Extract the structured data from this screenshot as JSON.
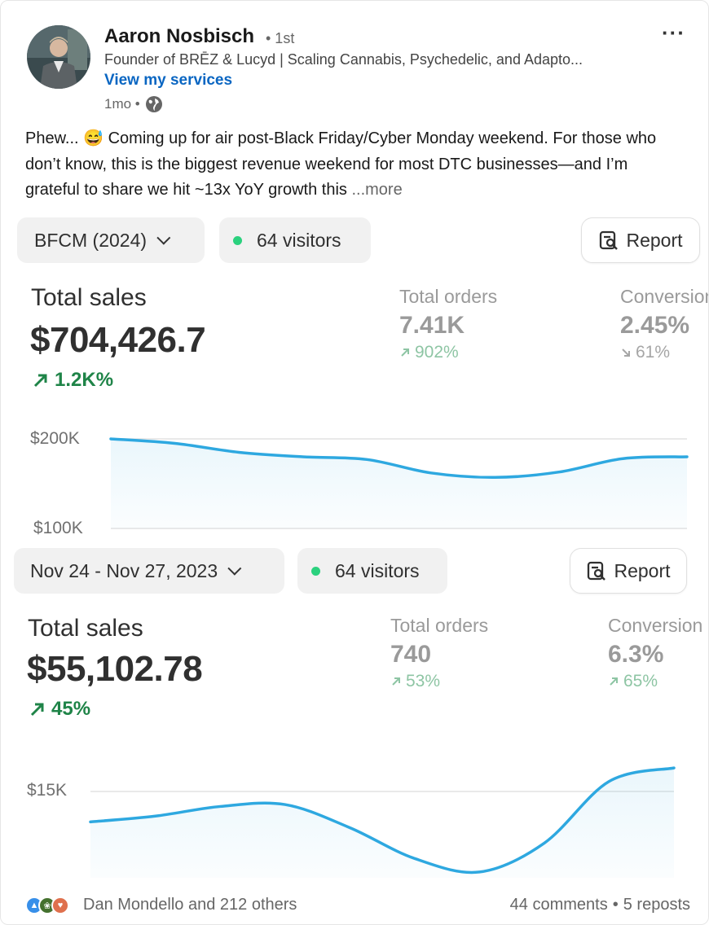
{
  "post": {
    "author": {
      "name": "Aaron Nosbisch",
      "degree": "• 1st",
      "headline": "Founder of BRĒZ & Lucyd | Scaling Cannabis, Psychedelic, and Adapto...",
      "services_link": "View my services",
      "time": "1mo •",
      "visibility_icon": "globe-icon"
    },
    "more_menu": "···",
    "text": "Phew... 😅 Coming up for air post-Black Friday/Cyber Monday weekend. For those who don’t know, this is the biggest revenue weekend for most DTC businesses—and I’m grateful to share we hit ~13x YoY growth this",
    "see_more": "...more"
  },
  "dashboards": [
    {
      "date_range": "BFCM (2024)",
      "visitors": "64 visitors",
      "report_label": "Report",
      "total_sales_label": "Total sales",
      "total_sales_value": "$704,426.7",
      "total_sales_change": "1.2K%",
      "metrics": [
        {
          "label": "Total orders",
          "value": "7.41K",
          "change": "902%",
          "direction": "up"
        },
        {
          "label": "Conversion",
          "value": "2.45%",
          "change": "61%",
          "direction": "down"
        }
      ],
      "y_ticks": [
        "$200K",
        "$100K"
      ]
    },
    {
      "date_range": "Nov 24 - Nov 27, 2023",
      "visitors": "64 visitors",
      "report_label": "Report",
      "total_sales_label": "Total sales",
      "total_sales_value": "$55,102.78",
      "total_sales_change": "45%",
      "metrics": [
        {
          "label": "Total orders",
          "value": "740",
          "change": "53%",
          "direction": "up"
        },
        {
          "label": "Conversion",
          "value": "6.3%",
          "change": "65%",
          "direction": "up"
        }
      ],
      "y_ticks": [
        "$15K"
      ]
    }
  ],
  "chart_data": [
    {
      "type": "area",
      "y_ticks": [
        "$200K",
        "$100K"
      ],
      "x": [
        0,
        1,
        2,
        3,
        4,
        5,
        6,
        7,
        8,
        9
      ],
      "values": [
        200000,
        195000,
        185000,
        180000,
        177000,
        162000,
        157000,
        163000,
        178000,
        180000
      ],
      "ylim": [
        100000,
        200000
      ]
    },
    {
      "type": "area",
      "y_ticks": [
        "$15K"
      ],
      "x": [
        0,
        1,
        2,
        3,
        4,
        5,
        6,
        7,
        8,
        9
      ],
      "values": [
        12900,
        13200,
        13700,
        13800,
        12600,
        11000,
        10300,
        11800,
        15000,
        15700
      ],
      "ylim": [
        10000,
        16000
      ]
    }
  ],
  "footer": {
    "reactions_text": "Dan Mondello and 212 others",
    "comments": "44 comments",
    "separator": "•",
    "reposts": "5 reposts"
  },
  "colors": {
    "accent_link": "#0a66c2",
    "chart_line": "#2ea8e0",
    "positive": "#1f8448",
    "visitor_dot": "#2bd17e"
  }
}
